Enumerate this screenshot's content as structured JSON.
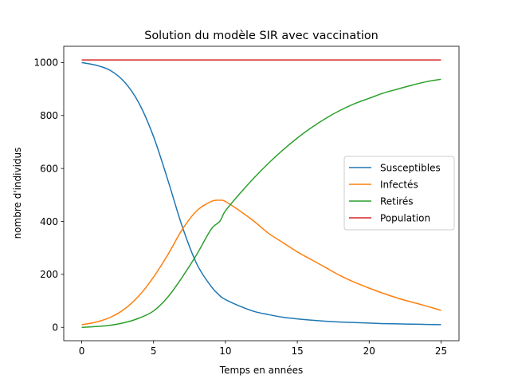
{
  "chart_data": {
    "type": "line",
    "title": "Solution du modèle SIR avec vaccination",
    "xlabel": "Temps en années",
    "ylabel": "nombre d'individus",
    "xlim": [
      -1.25,
      26.25
    ],
    "ylim": [
      -50.5,
      1061.5
    ],
    "xticks": [
      0,
      5,
      10,
      15,
      20,
      25
    ],
    "yticks": [
      0,
      200,
      400,
      600,
      800,
      1000
    ],
    "grid": false,
    "legend_position": "center-right",
    "x": [
      0,
      1,
      2,
      3,
      4,
      5,
      6,
      7,
      8,
      9,
      9.6,
      10,
      11,
      12,
      13,
      14,
      15,
      16,
      17,
      18,
      19,
      20,
      21,
      22,
      23,
      24,
      25
    ],
    "series": [
      {
        "name": "Susceptibles",
        "color": "#1f77b4",
        "values": [
          1000,
          990,
          970,
          925,
          845,
          720,
          555,
          380,
          240,
          155,
          120,
          105,
          80,
          60,
          48,
          38,
          32,
          27,
          23,
          20,
          18,
          16,
          14,
          13,
          12,
          11,
          10
        ]
      },
      {
        "name": "Infectés",
        "color": "#ff7f0e",
        "values": [
          10,
          20,
          38,
          70,
          120,
          190,
          275,
          370,
          440,
          475,
          480,
          475,
          440,
          400,
          355,
          320,
          285,
          255,
          225,
          195,
          170,
          148,
          128,
          110,
          95,
          80,
          64
        ]
      },
      {
        "name": "Retirés",
        "color": "#2ca02c",
        "values": [
          0,
          3,
          8,
          18,
          35,
          62,
          115,
          190,
          275,
          370,
          400,
          440,
          505,
          565,
          620,
          670,
          715,
          755,
          790,
          820,
          845,
          865,
          885,
          900,
          915,
          928,
          937
        ]
      },
      {
        "name": "Population",
        "color": "#d62728",
        "values": [
          1010,
          1010,
          1010,
          1010,
          1010,
          1010,
          1010,
          1010,
          1010,
          1010,
          1010,
          1010,
          1010,
          1010,
          1010,
          1010,
          1010,
          1010,
          1010,
          1010,
          1010,
          1010,
          1010,
          1010,
          1010,
          1010,
          1010
        ]
      }
    ]
  }
}
